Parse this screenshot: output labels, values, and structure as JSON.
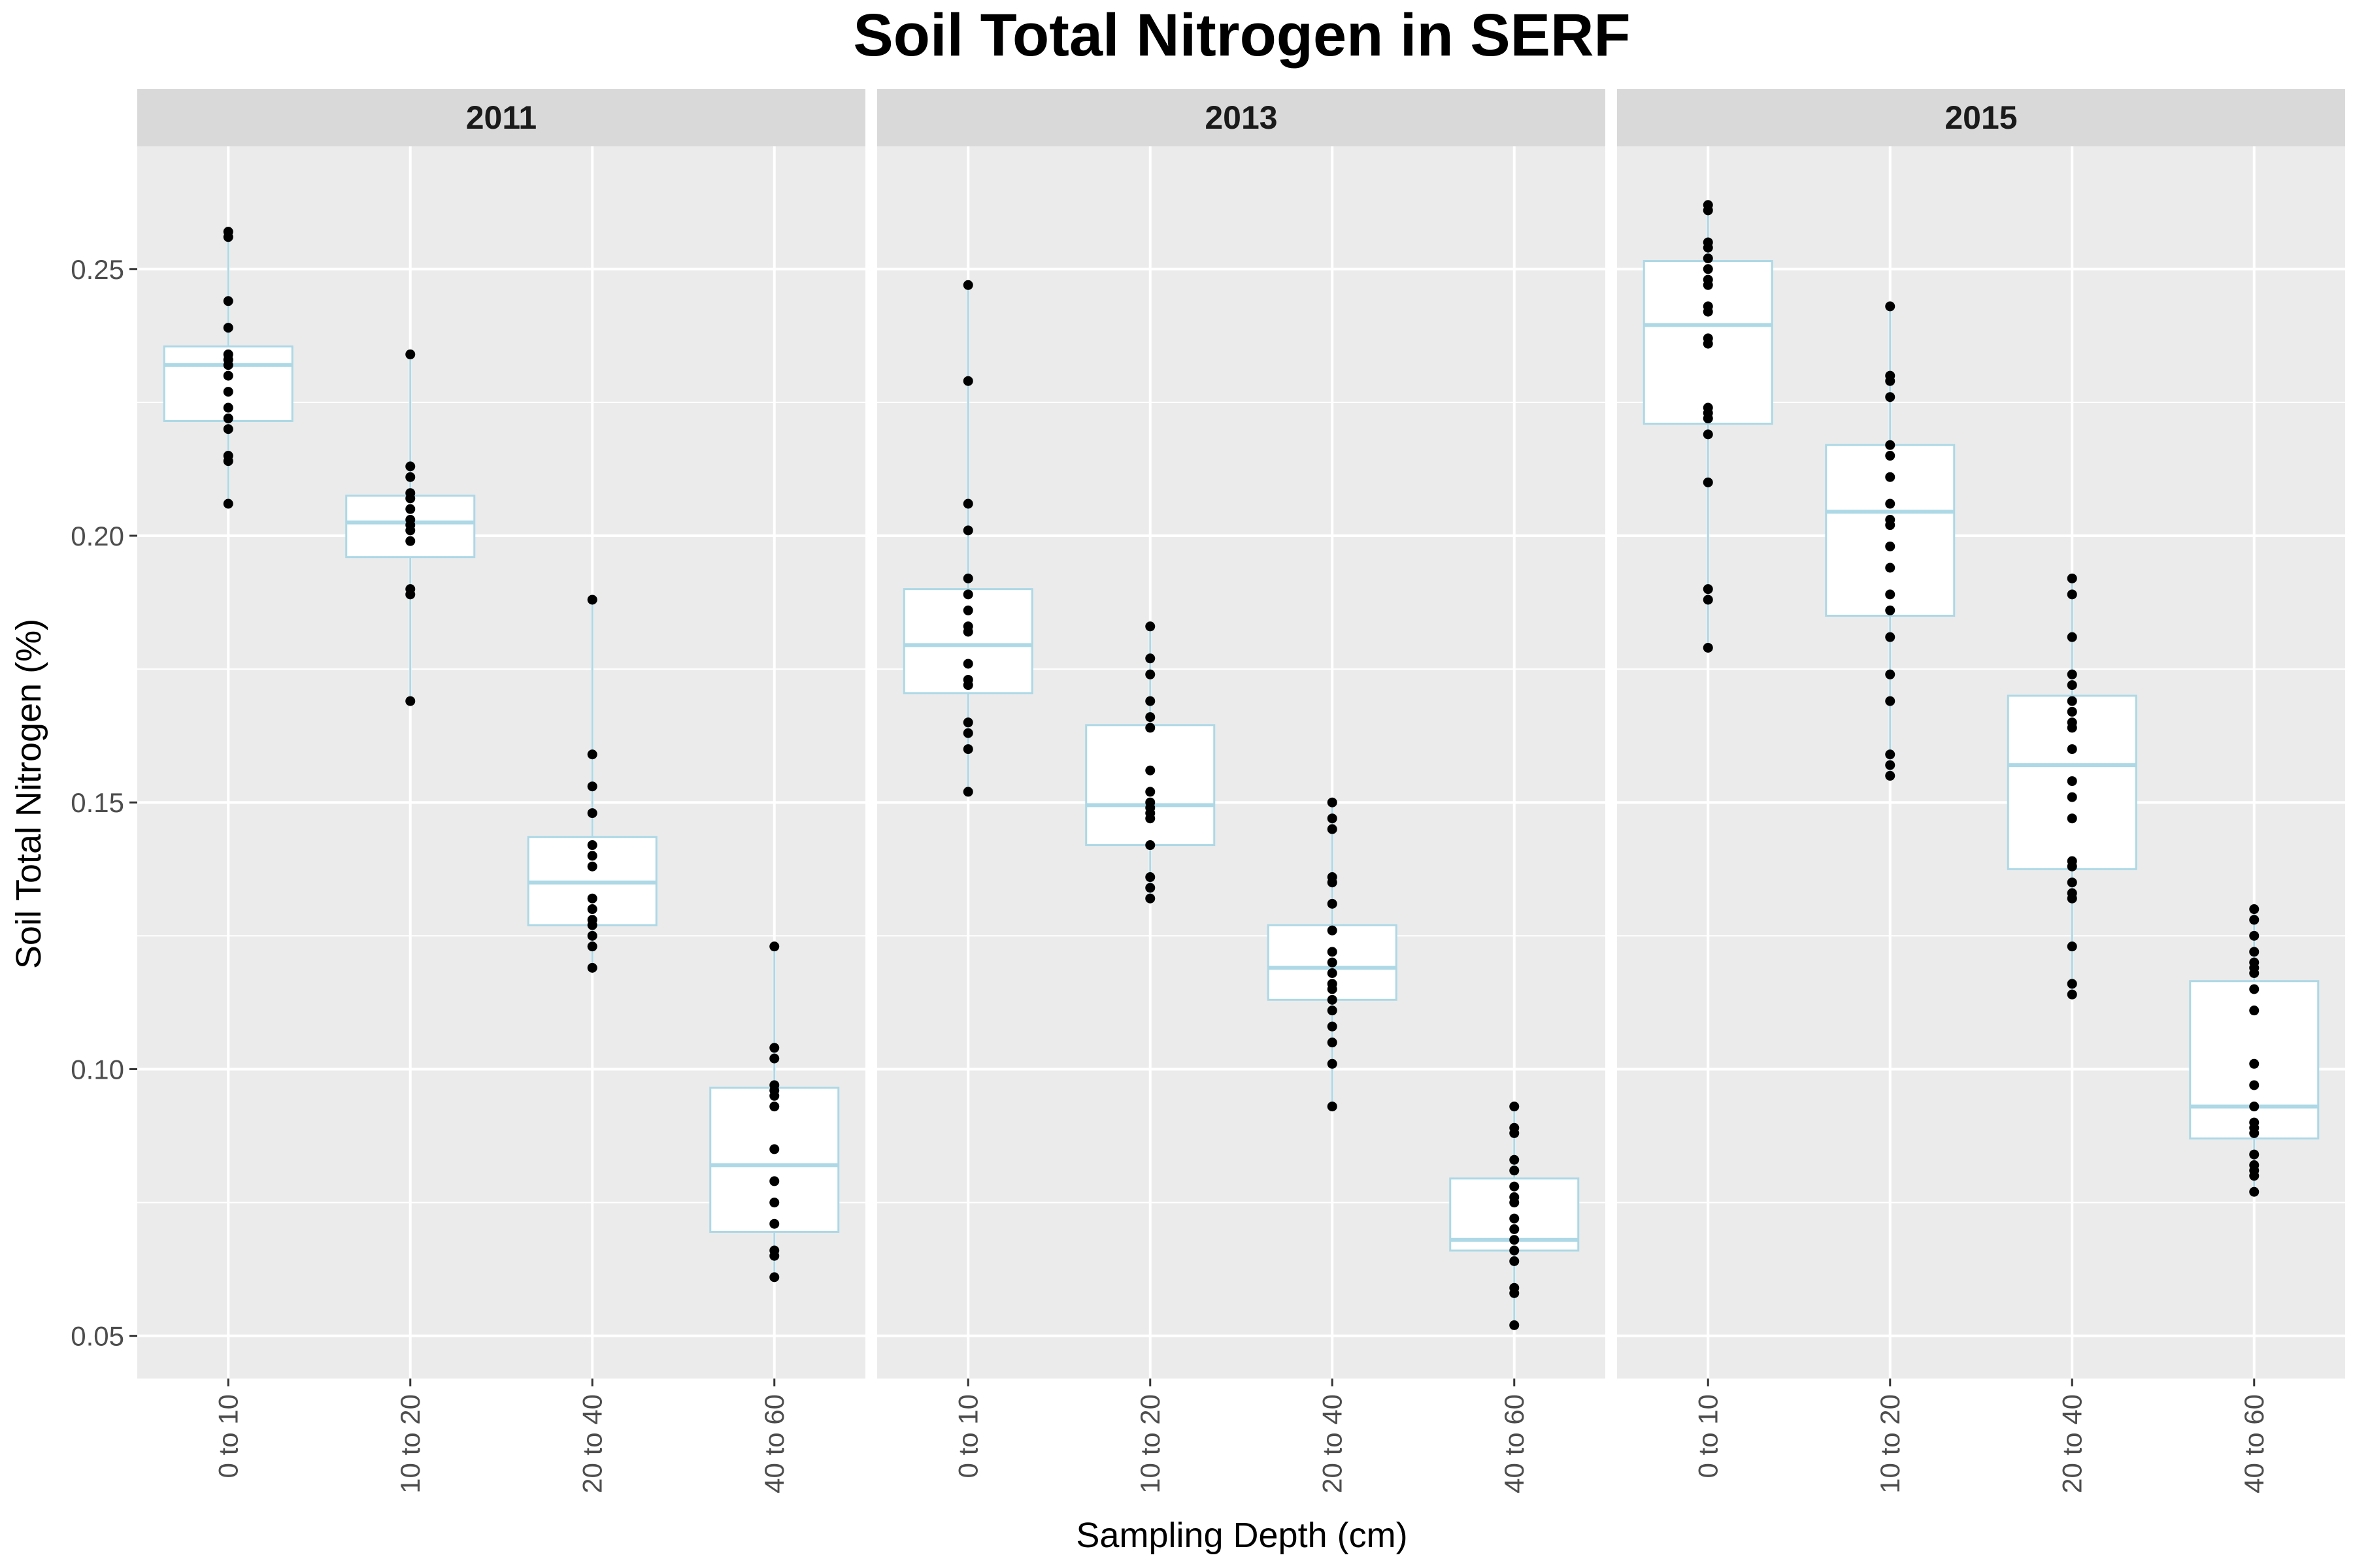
{
  "chart_data": {
    "type": "boxplot",
    "title": "Soil Total Nitrogen in SERF",
    "xlabel": "Sampling Depth (cm)",
    "ylabel": "Soil Total Nitrogen (%)",
    "ylim": [
      0.042,
      0.273
    ],
    "yticks": [
      0.05,
      0.1,
      0.15,
      0.2,
      0.25
    ],
    "ytick_labels": [
      "0.05",
      "0.10",
      "0.15",
      "0.20",
      "0.25"
    ],
    "categories": [
      "0 to 10",
      "10 to 20",
      "20 to 40",
      "40 to 60"
    ],
    "grid": true,
    "box_color": "#add8e6",
    "point_color": "#000000",
    "panel_background": "#ebebeb",
    "strip_background": "#d9d9d9",
    "panels": [
      {
        "label": "2011",
        "boxes": [
          {
            "category": "0 to 10",
            "min": 0.206,
            "q1": 0.2215,
            "median": 0.232,
            "q3": 0.2355,
            "max": 0.257,
            "points": [
              0.257,
              0.256,
              0.244,
              0.239,
              0.234,
              0.233,
              0.232,
              0.23,
              0.227,
              0.224,
              0.222,
              0.22,
              0.215,
              0.214,
              0.206
            ]
          },
          {
            "category": "10 to 20",
            "min": 0.169,
            "q1": 0.196,
            "median": 0.2025,
            "q3": 0.2075,
            "max": 0.234,
            "points": [
              0.234,
              0.213,
              0.211,
              0.208,
              0.207,
              0.205,
              0.203,
              0.202,
              0.201,
              0.199,
              0.19,
              0.189,
              0.169
            ]
          },
          {
            "category": "20 to 40",
            "min": 0.119,
            "q1": 0.127,
            "median": 0.135,
            "q3": 0.1435,
            "max": 0.188,
            "points": [
              0.188,
              0.159,
              0.153,
              0.148,
              0.142,
              0.14,
              0.138,
              0.132,
              0.13,
              0.128,
              0.127,
              0.125,
              0.123,
              0.119
            ]
          },
          {
            "category": "40 to 60",
            "min": 0.061,
            "q1": 0.0695,
            "median": 0.082,
            "q3": 0.0965,
            "max": 0.123,
            "points": [
              0.123,
              0.104,
              0.102,
              0.097,
              0.096,
              0.095,
              0.093,
              0.085,
              0.079,
              0.075,
              0.071,
              0.066,
              0.065,
              0.061
            ]
          }
        ]
      },
      {
        "label": "2013",
        "boxes": [
          {
            "category": "0 to 10",
            "min": 0.152,
            "q1": 0.1705,
            "median": 0.1795,
            "q3": 0.19,
            "max": 0.247,
            "points": [
              0.247,
              0.229,
              0.206,
              0.201,
              0.192,
              0.189,
              0.186,
              0.183,
              0.182,
              0.176,
              0.173,
              0.172,
              0.165,
              0.163,
              0.16,
              0.152
            ]
          },
          {
            "category": "10 to 20",
            "min": 0.132,
            "q1": 0.142,
            "median": 0.1495,
            "q3": 0.1645,
            "max": 0.183,
            "points": [
              0.183,
              0.177,
              0.174,
              0.169,
              0.166,
              0.164,
              0.156,
              0.152,
              0.15,
              0.149,
              0.148,
              0.147,
              0.142,
              0.136,
              0.134,
              0.132
            ]
          },
          {
            "category": "20 to 40",
            "min": 0.093,
            "q1": 0.113,
            "median": 0.119,
            "q3": 0.127,
            "max": 0.15,
            "points": [
              0.15,
              0.147,
              0.145,
              0.136,
              0.135,
              0.131,
              0.126,
              0.122,
              0.12,
              0.118,
              0.116,
              0.115,
              0.113,
              0.111,
              0.108,
              0.105,
              0.101,
              0.093
            ]
          },
          {
            "category": "40 to 60",
            "min": 0.052,
            "q1": 0.066,
            "median": 0.068,
            "q3": 0.0795,
            "max": 0.093,
            "points": [
              0.093,
              0.089,
              0.088,
              0.083,
              0.081,
              0.078,
              0.076,
              0.075,
              0.072,
              0.07,
              0.068,
              0.066,
              0.064,
              0.059,
              0.058,
              0.052
            ]
          }
        ]
      },
      {
        "label": "2015",
        "boxes": [
          {
            "category": "0 to 10",
            "min": 0.179,
            "q1": 0.221,
            "median": 0.2395,
            "q3": 0.2515,
            "max": 0.262,
            "points": [
              0.262,
              0.261,
              0.255,
              0.254,
              0.252,
              0.25,
              0.248,
              0.247,
              0.243,
              0.242,
              0.237,
              0.236,
              0.224,
              0.223,
              0.222,
              0.219,
              0.21,
              0.19,
              0.188,
              0.179
            ]
          },
          {
            "category": "10 to 20",
            "min": 0.155,
            "q1": 0.185,
            "median": 0.2045,
            "q3": 0.217,
            "max": 0.243,
            "points": [
              0.243,
              0.23,
              0.229,
              0.226,
              0.217,
              0.215,
              0.211,
              0.206,
              0.203,
              0.202,
              0.198,
              0.194,
              0.189,
              0.186,
              0.181,
              0.174,
              0.169,
              0.159,
              0.157,
              0.155
            ]
          },
          {
            "category": "20 to 40",
            "min": 0.114,
            "q1": 0.1375,
            "median": 0.157,
            "q3": 0.17,
            "max": 0.192,
            "points": [
              0.192,
              0.189,
              0.181,
              0.174,
              0.172,
              0.169,
              0.167,
              0.165,
              0.164,
              0.16,
              0.154,
              0.151,
              0.147,
              0.139,
              0.138,
              0.135,
              0.133,
              0.132,
              0.123,
              0.116,
              0.114
            ]
          },
          {
            "category": "40 to 60",
            "min": 0.077,
            "q1": 0.087,
            "median": 0.093,
            "q3": 0.1165,
            "max": 0.13,
            "points": [
              0.13,
              0.128,
              0.125,
              0.122,
              0.12,
              0.119,
              0.118,
              0.115,
              0.111,
              0.101,
              0.097,
              0.093,
              0.09,
              0.089,
              0.088,
              0.084,
              0.082,
              0.081,
              0.08,
              0.077
            ]
          }
        ]
      }
    ]
  }
}
